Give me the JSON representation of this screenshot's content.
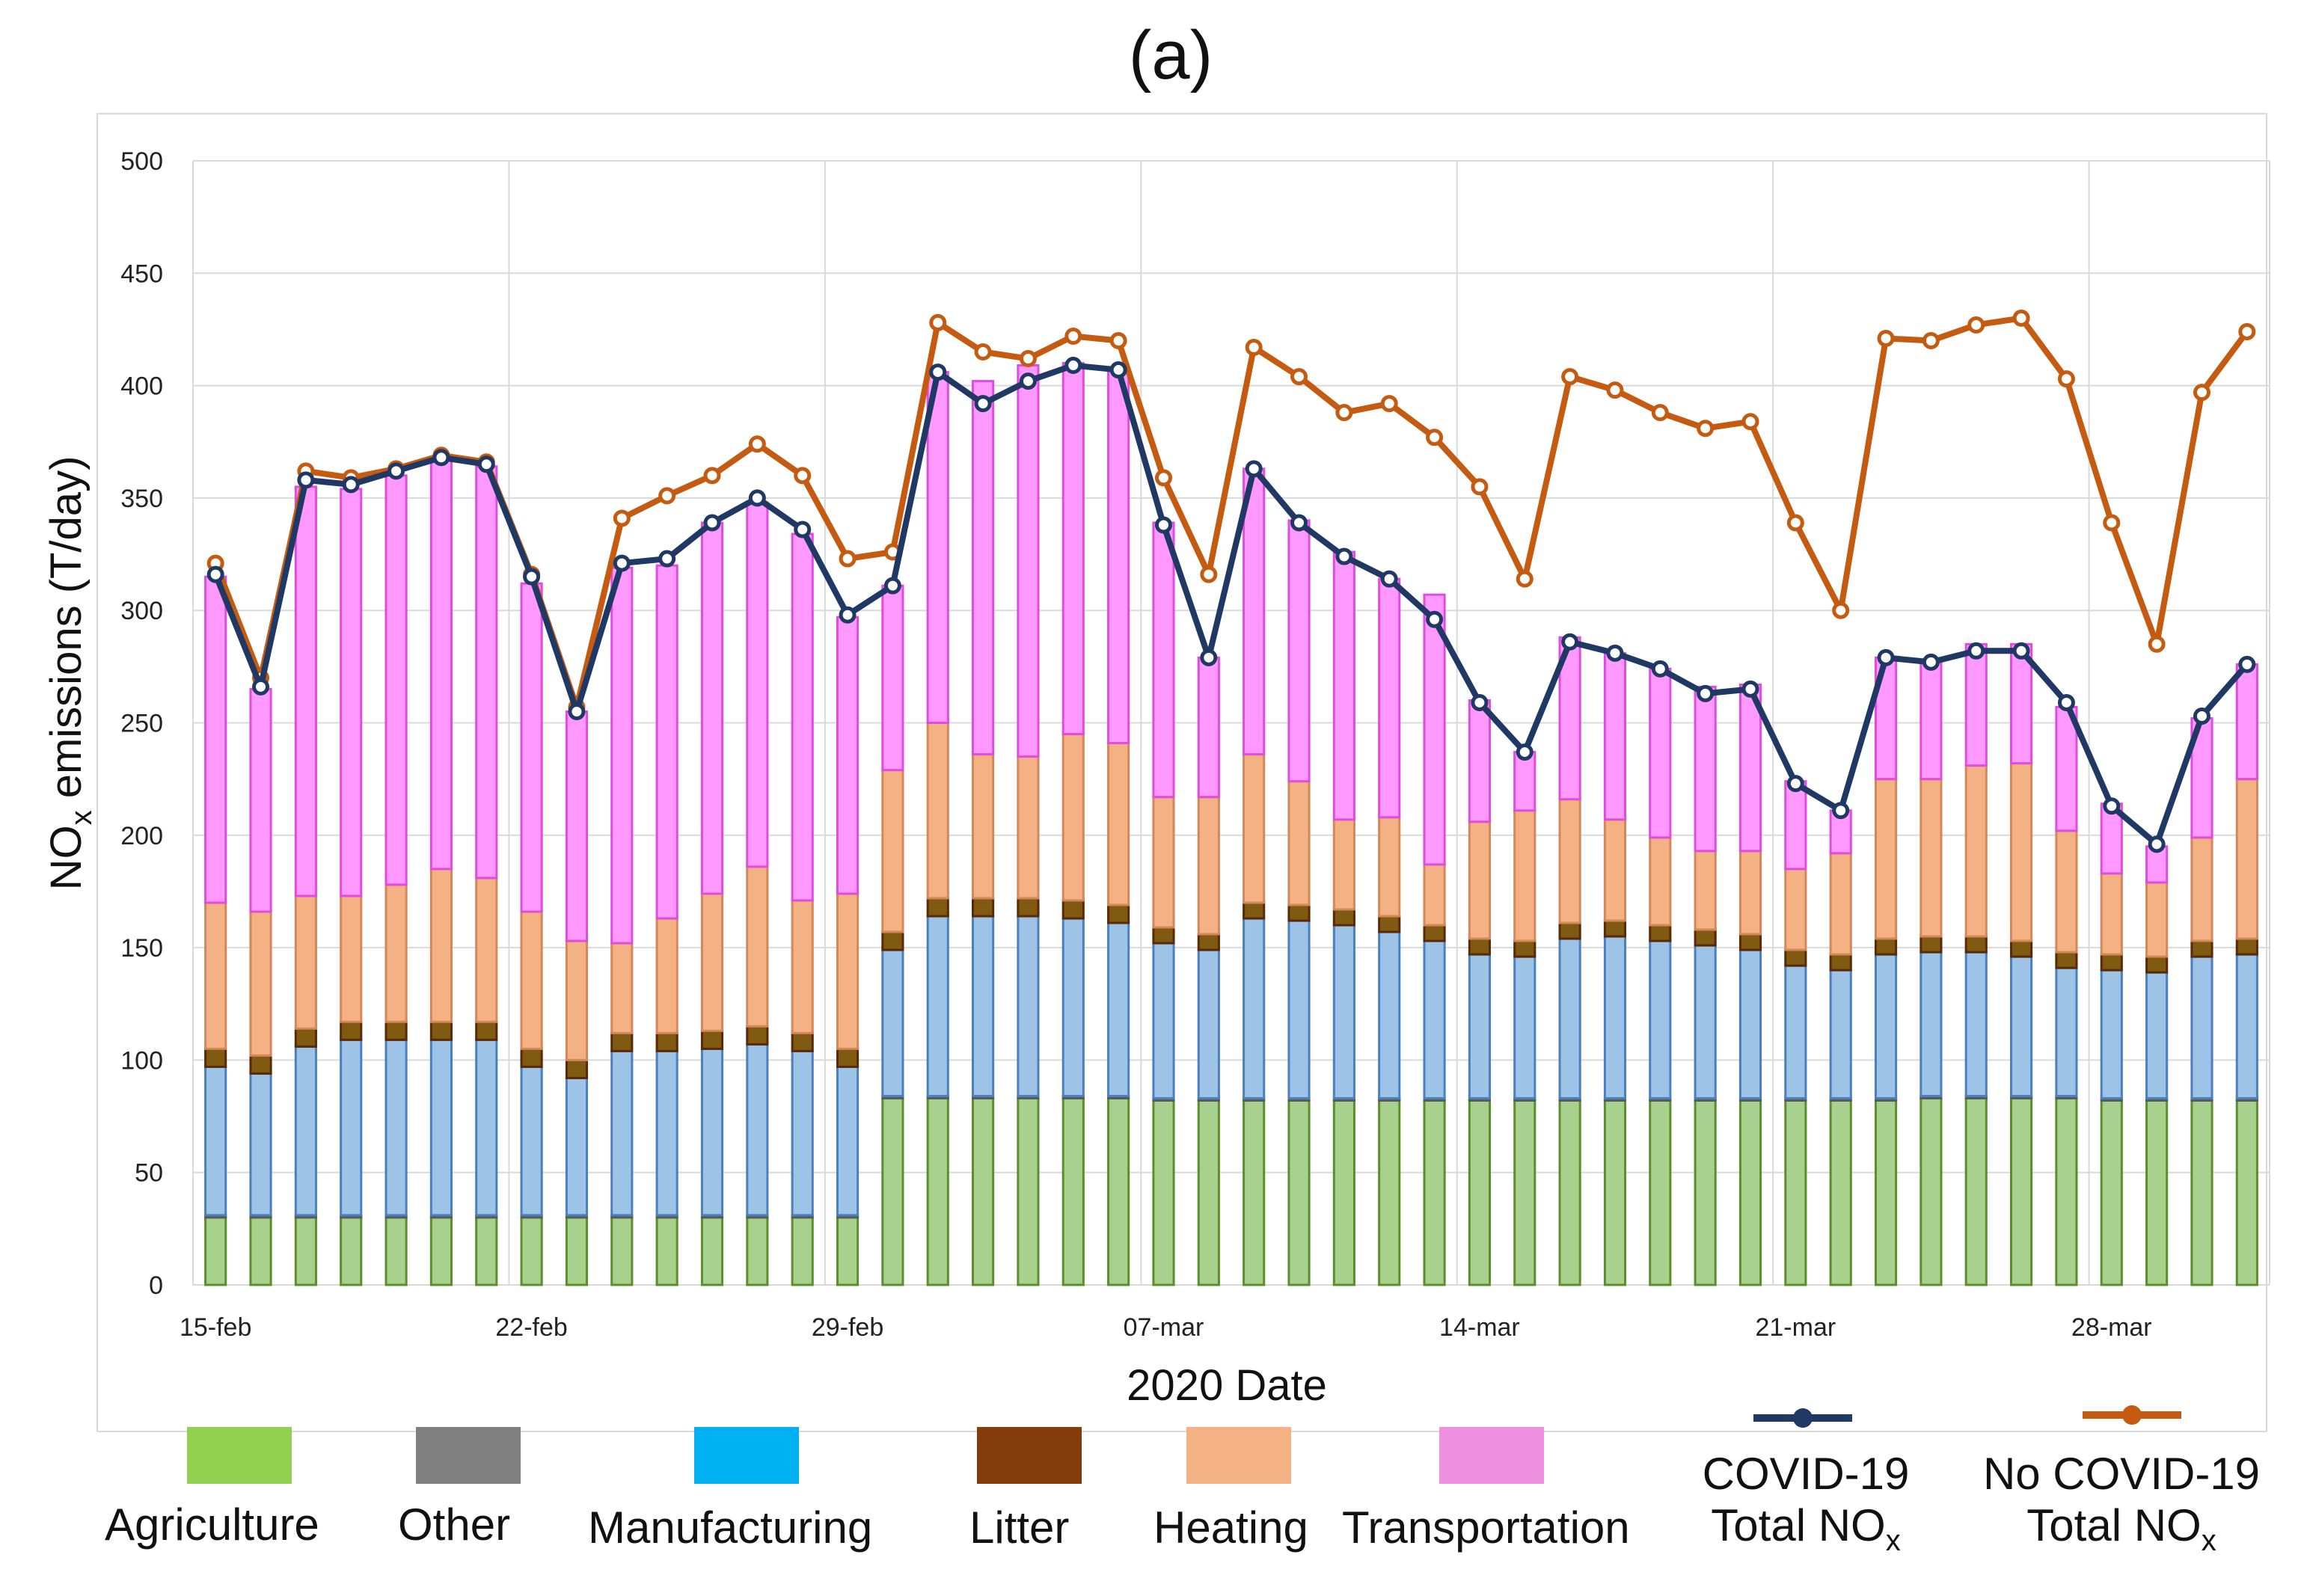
{
  "chart_data": {
    "type": "bar",
    "stacked": true,
    "panel_label": "(a)",
    "xlabel": "2020 Date",
    "ylabel": "NOx emissions (T/day)",
    "ylim": [
      0,
      500
    ],
    "yticks": [
      0,
      50,
      100,
      150,
      200,
      250,
      300,
      350,
      400,
      450,
      500
    ],
    "grid": true,
    "xtick_labels": [
      {
        "index": 0,
        "label": "15-feb"
      },
      {
        "index": 7,
        "label": "22-feb"
      },
      {
        "index": 14,
        "label": "29-feb"
      },
      {
        "index": 21,
        "label": "07-mar"
      },
      {
        "index": 28,
        "label": "14-mar"
      },
      {
        "index": 35,
        "label": "21-mar"
      },
      {
        "index": 42,
        "label": "28-mar"
      }
    ],
    "categories": [
      "15-feb",
      "16-feb",
      "17-feb",
      "18-feb",
      "19-feb",
      "20-feb",
      "21-feb",
      "22-feb",
      "23-feb",
      "24-feb",
      "25-feb",
      "26-feb",
      "27-feb",
      "28-feb",
      "29-feb",
      "01-mar",
      "02-mar",
      "03-mar",
      "04-mar",
      "05-mar",
      "06-mar",
      "07-mar",
      "08-mar",
      "09-mar",
      "10-mar",
      "11-mar",
      "12-mar",
      "13-mar",
      "14-mar",
      "15-mar",
      "16-mar",
      "17-mar",
      "18-mar",
      "19-mar",
      "20-mar",
      "21-mar",
      "22-mar",
      "23-mar",
      "24-mar",
      "25-mar",
      "26-mar",
      "27-mar",
      "28-mar",
      "29-mar",
      "30-mar",
      "31-mar"
    ],
    "series": [
      {
        "name": "Agriculture",
        "kind": "bar",
        "color": "#92d050",
        "values": [
          30,
          30,
          30,
          30,
          30,
          30,
          30,
          30,
          30,
          30,
          30,
          30,
          30,
          30,
          30,
          83,
          83,
          83,
          83,
          83,
          83,
          82,
          82,
          82,
          82,
          82,
          82,
          82,
          82,
          82,
          82,
          82,
          82,
          82,
          82,
          82,
          82,
          82,
          83,
          83,
          83,
          83,
          82,
          82,
          82,
          82
        ]
      },
      {
        "name": "Other",
        "kind": "bar",
        "color": "#808080",
        "values": [
          1,
          1,
          1,
          1,
          1,
          1,
          1,
          1,
          1,
          1,
          1,
          1,
          1,
          1,
          1,
          1,
          1,
          1,
          1,
          1,
          1,
          1,
          1,
          1,
          1,
          1,
          1,
          1,
          1,
          1,
          1,
          1,
          1,
          1,
          1,
          1,
          1,
          1,
          1,
          1,
          1,
          1,
          1,
          1,
          1,
          1
        ]
      },
      {
        "name": "Manufacturing",
        "kind": "bar",
        "color": "#00b0f0",
        "values": [
          66,
          63,
          75,
          78,
          78,
          78,
          78,
          66,
          61,
          73,
          73,
          74,
          76,
          73,
          66,
          65,
          80,
          80,
          80,
          79,
          77,
          69,
          66,
          80,
          79,
          77,
          74,
          70,
          64,
          63,
          71,
          72,
          70,
          68,
          66,
          59,
          57,
          64,
          64,
          64,
          62,
          57,
          57,
          56,
          63,
          64
        ]
      },
      {
        "name": "Litter",
        "kind": "bar",
        "color": "#843c0c",
        "values": [
          8,
          8,
          8,
          8,
          8,
          8,
          8,
          8,
          8,
          8,
          8,
          8,
          8,
          8,
          8,
          8,
          8,
          8,
          8,
          8,
          8,
          7,
          7,
          7,
          7,
          7,
          7,
          7,
          7,
          7,
          7,
          7,
          7,
          7,
          7,
          7,
          7,
          7,
          7,
          7,
          7,
          7,
          7,
          7,
          7,
          7
        ]
      },
      {
        "name": "Heating",
        "kind": "bar",
        "color": "#f4b183",
        "values": [
          65,
          64,
          59,
          56,
          61,
          68,
          64,
          61,
          53,
          40,
          51,
          61,
          71,
          59,
          69,
          72,
          78,
          64,
          63,
          74,
          72,
          58,
          61,
          66,
          55,
          40,
          44,
          27,
          52,
          58,
          55,
          45,
          39,
          35,
          37,
          36,
          45,
          71,
          70,
          76,
          79,
          54,
          36,
          33,
          46,
          71
        ]
      },
      {
        "name": "Transportation",
        "kind": "bar",
        "color": "#ff66ff",
        "values": [
          145,
          99,
          182,
          181,
          182,
          183,
          183,
          146,
          102,
          167,
          157,
          165,
          162,
          163,
          123,
          82,
          156,
          166,
          174,
          165,
          166,
          122,
          62,
          127,
          116,
          119,
          106,
          120,
          54,
          26,
          72,
          74,
          75,
          73,
          74,
          39,
          19,
          54,
          53,
          54,
          53,
          55,
          31,
          16,
          53,
          51
        ]
      },
      {
        "name": "COVID-19 Total NOx",
        "kind": "line",
        "color": "#1f3864",
        "values": [
          316,
          266,
          358,
          356,
          362,
          368,
          365,
          315,
          255,
          321,
          323,
          339,
          350,
          336,
          298,
          311,
          406,
          392,
          402,
          409,
          407,
          338,
          279,
          363,
          339,
          324,
          314,
          296,
          259,
          237,
          286,
          281,
          274,
          263,
          265,
          223,
          211,
          279,
          277,
          282,
          282,
          259,
          213,
          196,
          253,
          276
        ]
      },
      {
        "name": "No COVID-19 Total NOx",
        "kind": "line",
        "color": "#c55a11",
        "values": [
          321,
          270,
          362,
          359,
          363,
          369,
          366,
          316,
          257,
          341,
          351,
          360,
          374,
          360,
          323,
          326,
          428,
          415,
          412,
          422,
          420,
          359,
          316,
          417,
          404,
          388,
          392,
          377,
          355,
          314,
          404,
          398,
          388,
          381,
          384,
          339,
          300,
          421,
          420,
          427,
          430,
          403,
          339,
          285,
          397,
          424
        ]
      }
    ]
  },
  "legend": {
    "agriculture": "Agriculture",
    "other": "Other",
    "manufacturing": "Manufacturing",
    "litter": "Litter",
    "heating": "Heating",
    "transportation": "Transportation",
    "covid_line1": "COVID-19",
    "covid_line2": "Total NO",
    "covid_sub": "x",
    "nocovid_line1": "No COVID-19",
    "nocovid_line2": "Total NO",
    "nocovid_sub": "x"
  }
}
